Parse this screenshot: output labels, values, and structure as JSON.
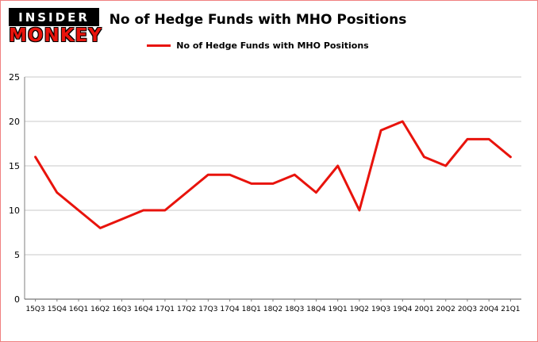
{
  "theme": {
    "accent_red": "#e8130c",
    "border_color": "#f08080",
    "grid_color": "#c9c9c9",
    "axis_color": "#7f7f7f",
    "text_color": "#000000"
  },
  "logo": {
    "line1": "INSIDER",
    "line2": "MONKEY"
  },
  "header": {
    "title": "No of Hedge Funds with MHO Positions"
  },
  "legend": {
    "label": "No of Hedge Funds with MHO Positions",
    "color": "#e8130c"
  },
  "chart_data": {
    "type": "line",
    "title": "No of Hedge Funds with MHO Positions",
    "categories": [
      "15Q3",
      "15Q4",
      "16Q1",
      "16Q2",
      "16Q3",
      "16Q4",
      "17Q1",
      "17Q2",
      "17Q3",
      "17Q4",
      "18Q1",
      "18Q2",
      "18Q3",
      "18Q4",
      "19Q1",
      "19Q2",
      "19Q3",
      "19Q4",
      "20Q1",
      "20Q2",
      "20Q3",
      "20Q4",
      "21Q1"
    ],
    "series": [
      {
        "name": "No of Hedge Funds with MHO Positions",
        "values": [
          16,
          12,
          10,
          8,
          9,
          10,
          10,
          12,
          14,
          14,
          13,
          13,
          14,
          12,
          15,
          10,
          19,
          20,
          16,
          15,
          18,
          18,
          16
        ]
      }
    ],
    "ylim": [
      0,
      25
    ],
    "yticks": [
      0,
      5,
      10,
      15,
      20,
      25
    ],
    "grid": true,
    "legend_position": "top",
    "line_color": "#e8130c",
    "xlabel": "",
    "ylabel": ""
  }
}
